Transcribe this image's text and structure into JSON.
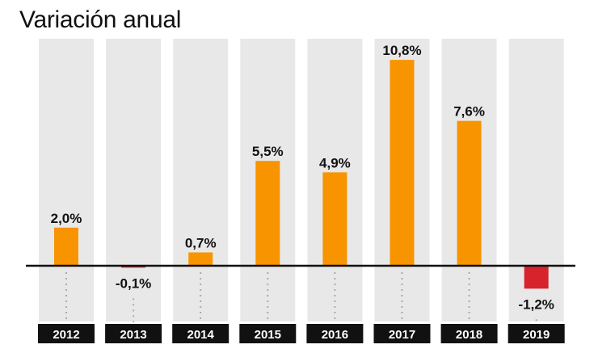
{
  "title": "Variación anual",
  "chart_data": {
    "type": "bar",
    "title": "Variación anual",
    "categories": [
      "2012",
      "2013",
      "2014",
      "2015",
      "2016",
      "2017",
      "2018",
      "2019"
    ],
    "values": [
      2.0,
      -0.1,
      0.7,
      5.5,
      4.9,
      10.8,
      7.6,
      -1.2
    ],
    "value_labels": [
      "2,0%",
      "-0,1%",
      "0,7%",
      "5,5%",
      "4,9%",
      "10,8%",
      "7,6%",
      "-1,2%"
    ],
    "ylim": [
      -3.0,
      11.0
    ],
    "grid": false,
    "colors": {
      "positive": "#f79400",
      "negative": "#d7232c",
      "column_background": "#e8e8e8",
      "year_box": "#111111"
    }
  }
}
